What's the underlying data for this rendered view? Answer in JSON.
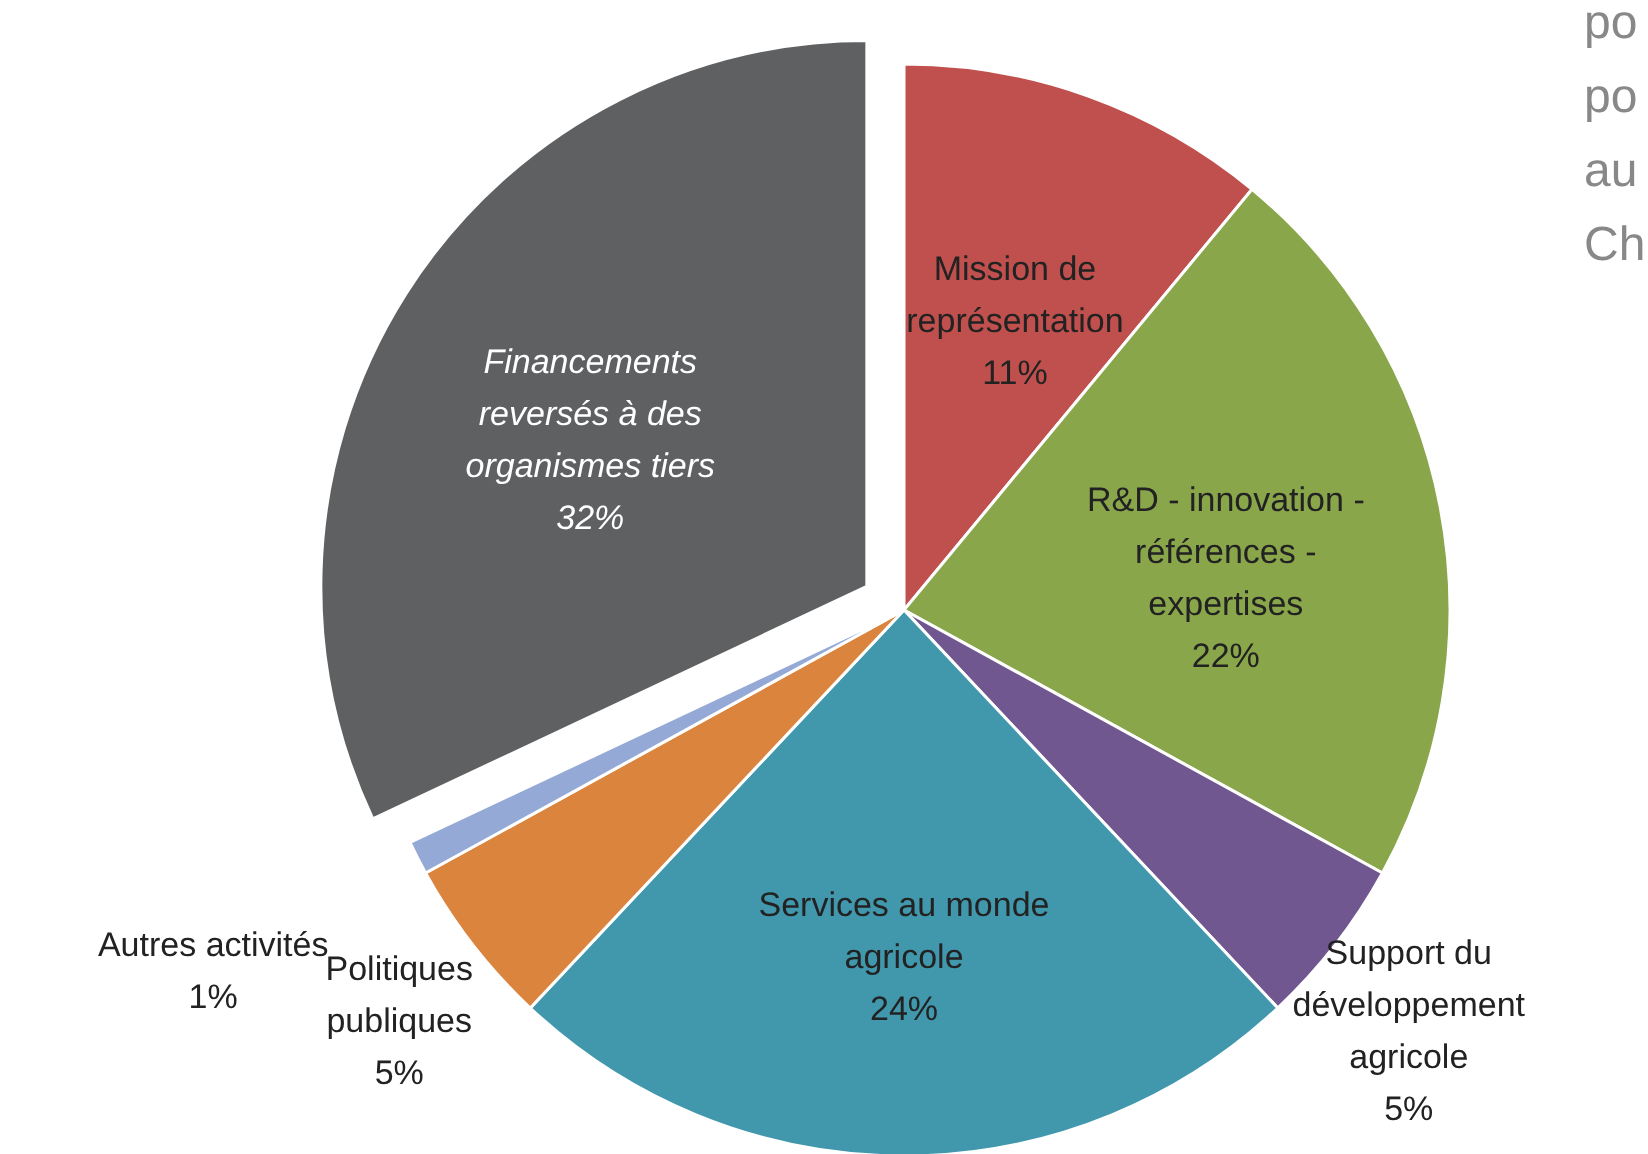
{
  "chart_data": {
    "type": "pie",
    "categories": [
      "Mission de représentation",
      "R&D - innovation - références - expertises",
      "Support du développement agricole",
      "Services au monde agricole",
      "Politiques publiques",
      "Autres activités",
      "Financements reversés à des organismes tiers"
    ],
    "values": [
      11,
      22,
      5,
      24,
      5,
      1,
      32
    ],
    "value_labels": [
      "11%",
      "22%",
      "5%",
      "24%",
      "5%",
      "1%",
      "32%"
    ],
    "colors": [
      "#c0504d",
      "#8aa64b",
      "#70578f",
      "#4198ad",
      "#db843d",
      "#94a9d6",
      "#5f6062"
    ],
    "annotations": [
      "po",
      "po",
      "au",
      "Ch"
    ]
  }
}
